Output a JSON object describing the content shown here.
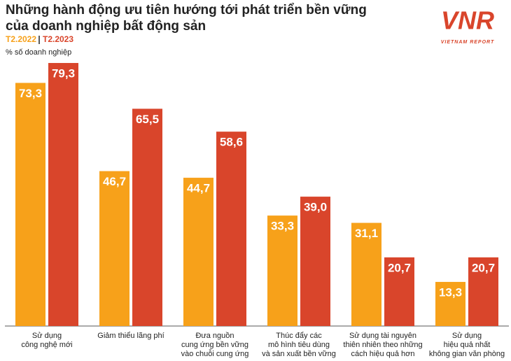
{
  "chart_data": {
    "type": "bar",
    "title": [
      "Những hành động ưu tiên hướng tới phát triển bền vững",
      "của doanh nghiệp bất động sản"
    ],
    "subtitle": "% số doanh nghiệp",
    "logo": {
      "mark": "VNR",
      "text": "VIETNAM REPORT"
    },
    "categories": [
      [
        "Sử dụng",
        "công nghệ mới"
      ],
      [
        "Giảm thiểu lãng phí"
      ],
      [
        "Đưa nguồn",
        "cung ứng bền vững",
        "vào chuỗi cung ứng"
      ],
      [
        "Thúc đẩy các",
        "mô hình tiêu dùng",
        "và sản xuất bền vững"
      ],
      [
        "Sử dụng tài nguyên",
        "thiên nhiên theo những",
        "cách hiệu quả hơn"
      ],
      [
        "Sử dụng",
        "hiệu quả nhất",
        "không gian văn phòng"
      ]
    ],
    "series": [
      {
        "name": "T2.2022",
        "color": "#f7a11a",
        "values": [
          73.3,
          46.7,
          44.7,
          33.3,
          31.1,
          13.3
        ],
        "value_labels": [
          "73,3",
          "46,7",
          "44,7",
          "33,3",
          "31,1",
          "13,3"
        ]
      },
      {
        "name": "T2.2023",
        "color": "#d9452b",
        "values": [
          79.3,
          65.5,
          58.6,
          39.0,
          20.7,
          20.7
        ],
        "value_labels": [
          "79,3",
          "65,5",
          "58,6",
          "39,0",
          "20,7",
          "20,7"
        ]
      }
    ],
    "ylim": [
      0,
      85
    ]
  }
}
